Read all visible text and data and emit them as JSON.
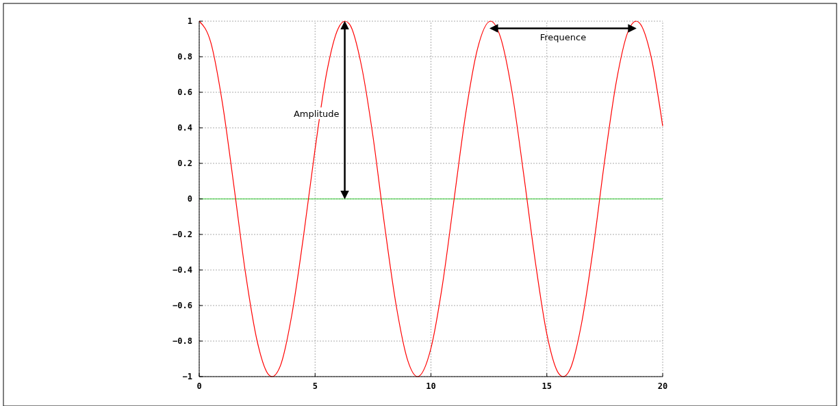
{
  "chart_data": {
    "type": "line",
    "x": [
      0,
      0.5,
      1,
      1.5,
      2,
      2.5,
      3,
      3.14,
      3.5,
      4,
      4.5,
      5,
      5.5,
      6,
      6.28,
      6.5,
      7,
      7.5,
      8,
      8.5,
      9,
      9.42,
      10,
      10.5,
      11,
      11.5,
      12,
      12.57,
      13,
      13.5,
      14,
      14.5,
      15,
      15.5,
      15.71,
      16,
      16.5,
      17,
      17.5,
      18,
      18.5,
      18.85,
      19,
      19.5,
      20
    ],
    "series": [
      {
        "color": "#ff0000",
        "values": [
          1,
          0.88,
          0.54,
          0.07,
          -0.42,
          -0.8,
          -0.99,
          -1,
          -0.94,
          -0.65,
          -0.21,
          0.28,
          0.71,
          0.96,
          1,
          0.98,
          0.75,
          0.35,
          -0.15,
          -0.6,
          -0.91,
          -1,
          -0.84,
          -0.48,
          0,
          0.48,
          0.84,
          1,
          0.91,
          0.6,
          0.14,
          -0.35,
          -0.76,
          -0.98,
          -1,
          -0.96,
          -0.7,
          -0.28,
          0.22,
          0.66,
          0.94,
          1,
          0.99,
          0.8,
          0.41
        ]
      }
    ],
    "xlim": [
      0,
      20
    ],
    "xticks": [
      0,
      5,
      10,
      15,
      20
    ],
    "ylim": [
      -1,
      1
    ],
    "yticks": [
      {
        "value": -1,
        "label": "−1"
      },
      {
        "value": -0.8,
        "label": "−0.8"
      },
      {
        "value": -0.6,
        "label": "−0.6"
      },
      {
        "value": -0.4,
        "label": "−0.4"
      },
      {
        "value": -0.2,
        "label": "−0.2"
      },
      0,
      0.2,
      0.4,
      0.6,
      0.8,
      1
    ],
    "grid": true,
    "marker": "none",
    "line_style": "solid",
    "ref_lines": [
      {
        "axis": "y",
        "value": 0,
        "color": "#33cc33"
      }
    ],
    "annotations": [
      "Amplitude",
      "Frequence"
    ]
  }
}
